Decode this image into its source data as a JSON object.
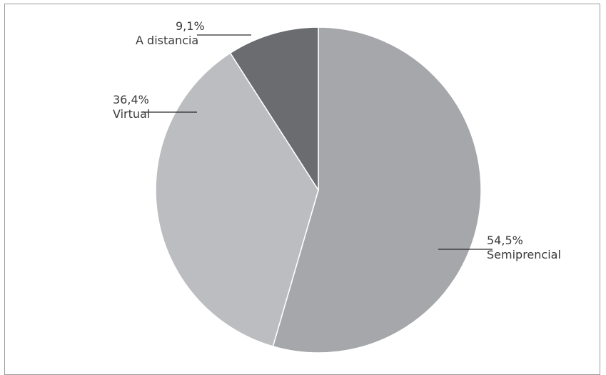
{
  "chart_data": {
    "type": "pie",
    "title": "",
    "slices": [
      {
        "label": "Semiprencial",
        "value": 54.5,
        "display": "54,5%",
        "color": "#a6a7aa"
      },
      {
        "label": "Virtual",
        "value": 36.4,
        "display": "36,4%",
        "color": "#bcbdc0"
      },
      {
        "label": "A distancia",
        "value": 9.1,
        "display": "9,1%",
        "color": "#6b6c70"
      }
    ],
    "start": "12 o'clock",
    "direction": "clockwise",
    "legend": "none",
    "label_style": "outside labels with leader lines"
  }
}
